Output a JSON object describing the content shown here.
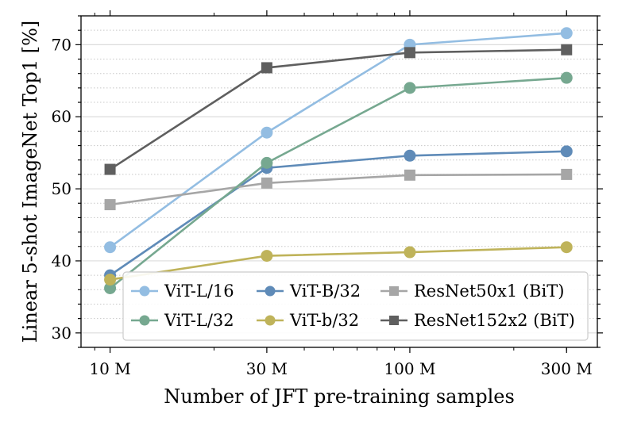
{
  "chart_data": {
    "type": "line",
    "xlabel": "Number of JFT pre-training samples",
    "ylabel": "Linear 5-shot ImageNet Top1 [%]",
    "x_scale": "log",
    "x": [
      9,
      30,
      90,
      300
    ],
    "x_tick_labels": [
      "10 M",
      "30 M",
      "100 M",
      "300 M"
    ],
    "xlim": [
      7.2,
      380
    ],
    "ylim": [
      28,
      74
    ],
    "y_ticks": [
      30,
      40,
      50,
      60,
      70
    ],
    "grid": true,
    "legend_position": "lower-right",
    "series": [
      {
        "name": "ViT-L/16",
        "marker": "circle",
        "color": "#93bde2",
        "values": [
          41.9,
          57.8,
          70.0,
          71.6
        ]
      },
      {
        "name": "ViT-B/32",
        "marker": "circle",
        "color": "#5f8bb8",
        "values": [
          38.0,
          52.9,
          54.6,
          55.2
        ]
      },
      {
        "name": "ResNet50x1 (BiT)",
        "marker": "square",
        "color": "#a6a6a6",
        "values": [
          47.8,
          50.8,
          51.9,
          52.0
        ]
      },
      {
        "name": "ViT-L/32",
        "marker": "circle",
        "color": "#76a890",
        "values": [
          36.2,
          53.6,
          64.0,
          65.4
        ]
      },
      {
        "name": "ViT-b/32",
        "marker": "circle",
        "color": "#bfb35a",
        "values": [
          37.4,
          40.7,
          41.2,
          41.9
        ]
      },
      {
        "name": "ResNet152x2 (BiT)",
        "marker": "square",
        "color": "#5f5f5f",
        "values": [
          52.7,
          66.8,
          68.9,
          69.3
        ]
      }
    ]
  }
}
